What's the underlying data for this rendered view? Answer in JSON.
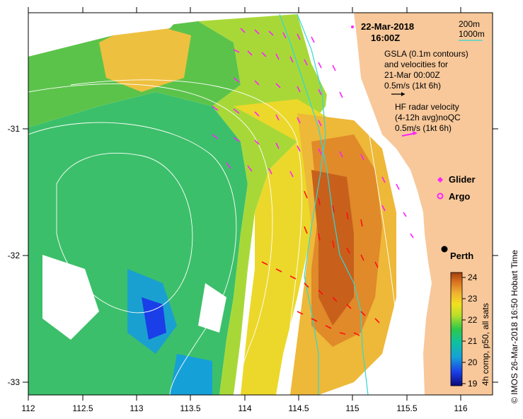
{
  "map": {
    "date": "22-Mar-2018",
    "time": "16:00Z",
    "x_axis": {
      "ticks": [
        "112",
        "112.5",
        "113",
        "113.5",
        "114",
        "114.5",
        "115",
        "115.5",
        "116"
      ]
    },
    "y_axis": {
      "ticks": [
        "-31",
        "-32",
        "-33"
      ]
    },
    "legend": {
      "isobath_1": "200m",
      "isobath_2": "1000m",
      "gsla_lines": [
        "GSLA (0.1m contours)",
        "and velocities for",
        "21-Mar 00:00Z",
        "0.5m/s (1kt 6h)"
      ],
      "hf_lines": [
        "HF radar velocity",
        "(4-12h avg)noQC",
        "0.5m/s (1kt 6h)"
      ],
      "glider": "Glider",
      "argo": "Argo"
    },
    "place": "Perth",
    "colorbar": {
      "ticks": [
        "24",
        "23",
        "22",
        "21",
        "20",
        "19"
      ],
      "label": "4h comp, p50, all sats"
    },
    "credit": "© IMOS 26-Mar-2018 16:50 Hobart Time",
    "colors": {
      "land": "#f8c89a",
      "shelf_contour": "#2fd8d8",
      "hf_arrow": "#ff22ff",
      "gsla_arrow": "#ff1010"
    }
  }
}
